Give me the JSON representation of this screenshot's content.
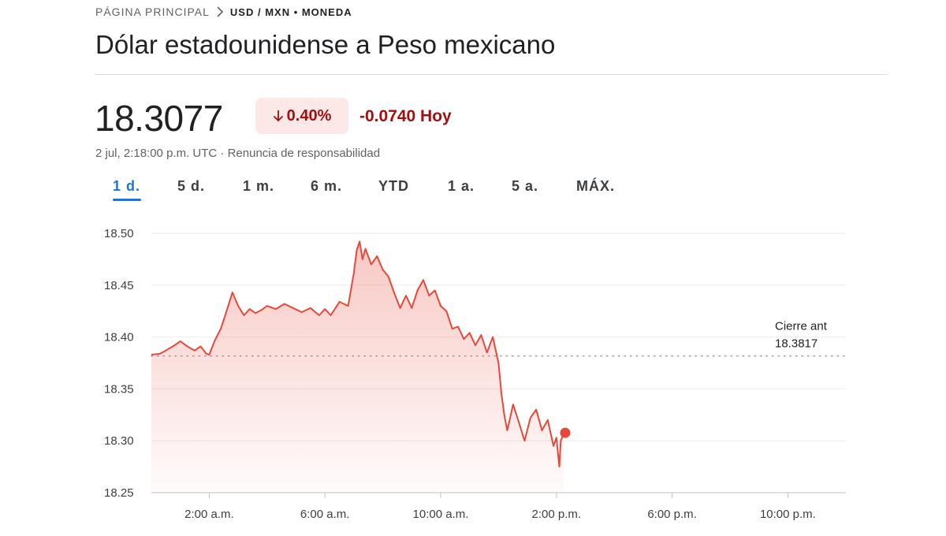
{
  "breadcrumb": {
    "home": "PÁGINA PRINCIPAL",
    "current": "USD / MXN • MONEDA"
  },
  "title": "Dólar estadounidense a Peso mexicano",
  "quote": {
    "price": "18.3077",
    "change_pct": "0.40%",
    "change_abs": "-0.0740 Hoy",
    "timestamp": "2 jul, 2:18:00 p.m. UTC",
    "disclaimer": "Renuncia de responsabilidad",
    "direction": "down"
  },
  "tabs": [
    {
      "label": "1 d.",
      "active": true
    },
    {
      "label": "5 d.",
      "active": false
    },
    {
      "label": "1 m.",
      "active": false
    },
    {
      "label": "6 m.",
      "active": false
    },
    {
      "label": "YTD",
      "active": false
    },
    {
      "label": "1 a.",
      "active": false
    },
    {
      "label": "5 a.",
      "active": false
    },
    {
      "label": "MÁX.",
      "active": false
    }
  ],
  "colors": {
    "line": "#e8483a",
    "negative": "#a50e0e",
    "badge_bg": "#fce8e6",
    "accent": "#1a73e8",
    "grid": "#ebebeb"
  },
  "chart_data": {
    "type": "line",
    "title": "",
    "xlabel": "",
    "ylabel": "",
    "x_unit": "hours_utc",
    "xlim": [
      0,
      24
    ],
    "ylim": [
      18.25,
      18.5
    ],
    "y_ticks": [
      "18.50",
      "18.45",
      "18.40",
      "18.35",
      "18.30",
      "18.25"
    ],
    "x_ticks": [
      {
        "x": 2,
        "label": "2:00 a.m."
      },
      {
        "x": 6,
        "label": "6:00 a.m."
      },
      {
        "x": 10,
        "label": "10:00 a.m."
      },
      {
        "x": 14,
        "label": "2:00 p.m."
      },
      {
        "x": 18,
        "label": "6:00 p.m."
      },
      {
        "x": 22,
        "label": "10:00 p.m."
      }
    ],
    "grid": true,
    "previous_close": {
      "label": "Cierre ant",
      "value": 18.3817,
      "value_label": "18.3817"
    },
    "series": [
      {
        "x": [
          0.0,
          0.3,
          0.5,
          0.8,
          1.0,
          1.3,
          1.5,
          1.7,
          1.9,
          2.0,
          2.2,
          2.4,
          2.6,
          2.8,
          3.0,
          3.2,
          3.4,
          3.6,
          3.8,
          4.0,
          4.3,
          4.6,
          4.9,
          5.2,
          5.5,
          5.8,
          6.0,
          6.2,
          6.5,
          6.8,
          7.0,
          7.1,
          7.2,
          7.3,
          7.4,
          7.6,
          7.8,
          8.0,
          8.2,
          8.4,
          8.6,
          8.8,
          9.0,
          9.2,
          9.4,
          9.6,
          9.8,
          10.0,
          10.2,
          10.4,
          10.6,
          10.8,
          11.0,
          11.2,
          11.4,
          11.6,
          11.8,
          12.0,
          12.1,
          12.2,
          12.3,
          12.4,
          12.5,
          12.7,
          12.9,
          13.1,
          13.3,
          13.5,
          13.7,
          13.9,
          14.0,
          14.1,
          14.15,
          14.25
        ],
        "y": [
          18.383,
          18.384,
          18.387,
          18.392,
          18.396,
          18.39,
          18.387,
          18.391,
          18.384,
          18.383,
          18.397,
          18.408,
          18.425,
          18.443,
          18.43,
          18.421,
          18.427,
          18.423,
          18.426,
          18.43,
          18.427,
          18.432,
          18.428,
          18.424,
          18.428,
          18.421,
          18.427,
          18.421,
          18.434,
          18.43,
          18.462,
          18.484,
          18.492,
          18.475,
          18.485,
          18.47,
          18.478,
          18.465,
          18.458,
          18.442,
          18.428,
          18.44,
          18.428,
          18.445,
          18.455,
          18.44,
          18.445,
          18.43,
          18.425,
          18.408,
          18.41,
          18.398,
          18.404,
          18.392,
          18.402,
          18.385,
          18.4,
          18.375,
          18.345,
          18.325,
          18.31,
          18.322,
          18.335,
          18.318,
          18.3,
          18.322,
          18.33,
          18.31,
          18.32,
          18.295,
          18.303,
          18.275,
          18.3,
          18.307
        ]
      }
    ],
    "last_value": 18.3077
  }
}
